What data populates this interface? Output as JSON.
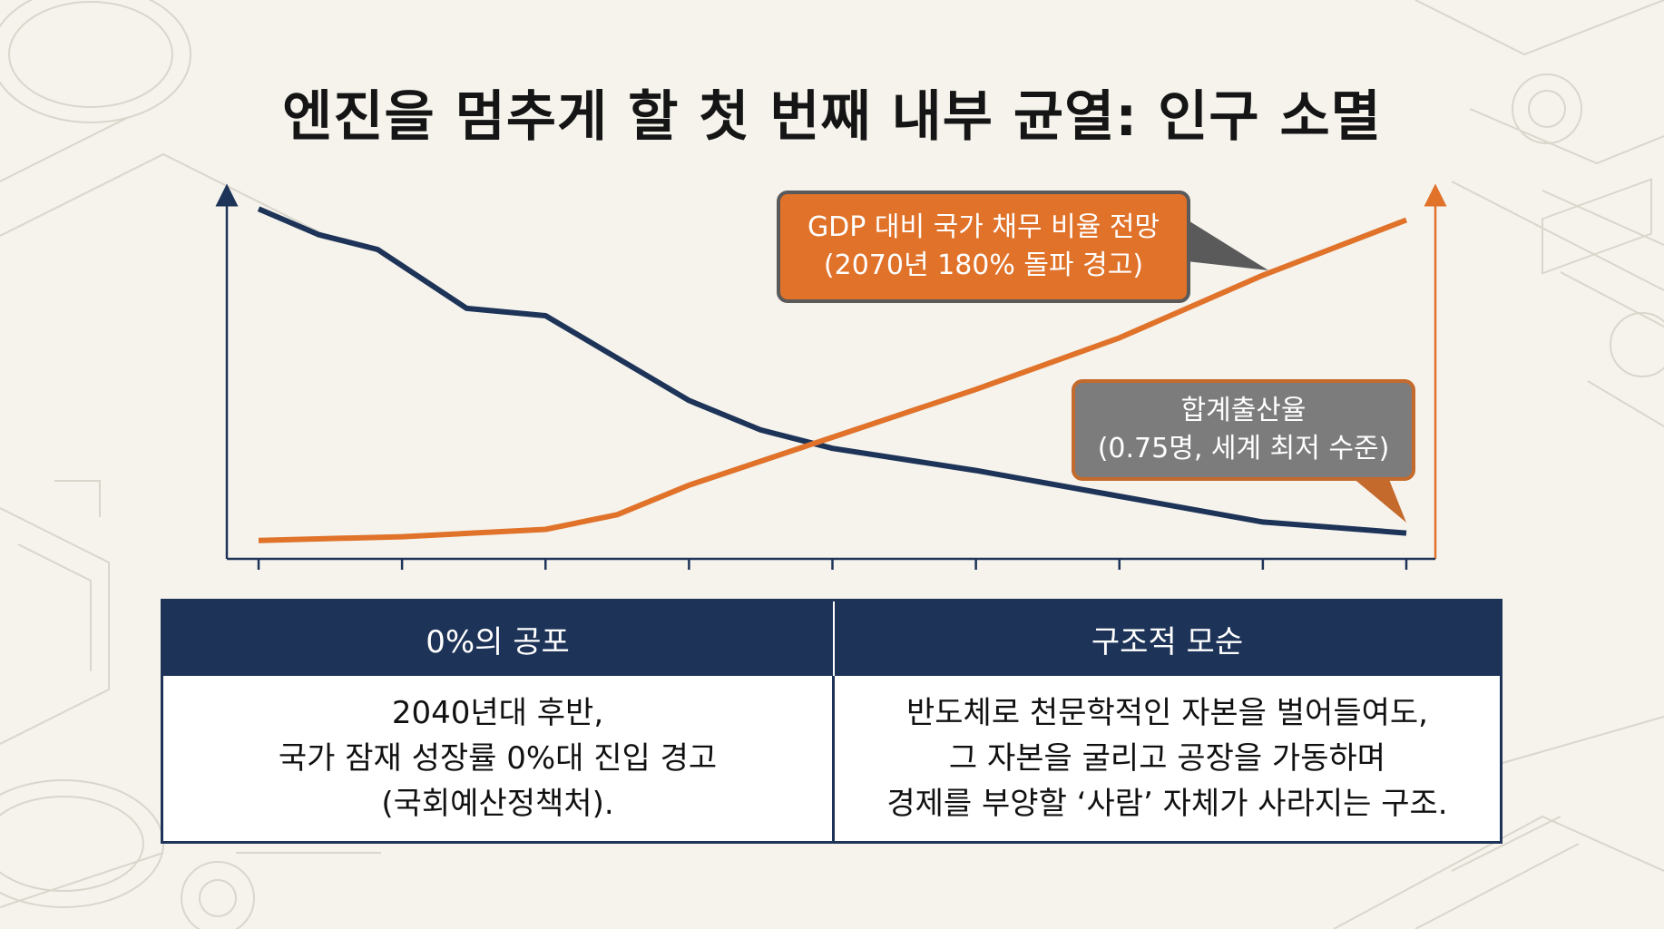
{
  "title": "엔진을 멈추게 할 첫 번째 내부 균열: 인구 소멸",
  "colors": {
    "navy": "#1d3358",
    "orange": "#e0722a",
    "gray": "#7c7c7c",
    "background": "#f5f3ec"
  },
  "chart_data": {
    "type": "line",
    "x": [
      0,
      1,
      2,
      3,
      4,
      5,
      6,
      7,
      8
    ],
    "xlabel": "",
    "ylabel": "",
    "ylim": [
      0,
      100
    ],
    "grid": false,
    "tick_labels_shown": false,
    "series": [
      {
        "name": "합계출산율",
        "color": "#1d3358",
        "x": [
          0,
          0.42,
          0.83,
          1.45,
          2.0,
          3.0,
          3.5,
          4.0,
          5.0,
          6.0,
          7.0,
          8.0
        ],
        "values": [
          95,
          88,
          84,
          68,
          66,
          43,
          35,
          30,
          24,
          17,
          10,
          7
        ]
      },
      {
        "name": "GDP 대비 국가 채무 비율",
        "color": "#e0722a",
        "x": [
          0,
          1,
          2,
          2.5,
          3,
          4,
          5,
          6,
          7,
          8
        ],
        "values": [
          5,
          6,
          8,
          12,
          20,
          33,
          46,
          60,
          77,
          92
        ]
      }
    ],
    "annotations": [
      {
        "series": "GDP 대비 국가 채무 비율",
        "line1": "GDP 대비 국가 채무 비율 전망",
        "line2": "(2070년 180% 돌파 경고)",
        "color": "#e0722a"
      },
      {
        "series": "합계출산율",
        "line1": "합계출산율",
        "line2": "(0.75명, 세계 최저 수준)",
        "color": "#7c7c7c"
      }
    ]
  },
  "panel": {
    "left": {
      "header": "0%의 공포",
      "lines": [
        "2040년대 후반,",
        "국가 잠재 성장률 0%대 진입 경고",
        "(국회예산정책처)."
      ]
    },
    "right": {
      "header": "구조적 모순",
      "lines": [
        "반도체로 천문학적인 자본을 벌어들여도,",
        "그 자본을 굴리고 공장을 가동하며",
        "경제를 부양할 ‘사람’ 자체가 사라지는 구조."
      ]
    }
  }
}
